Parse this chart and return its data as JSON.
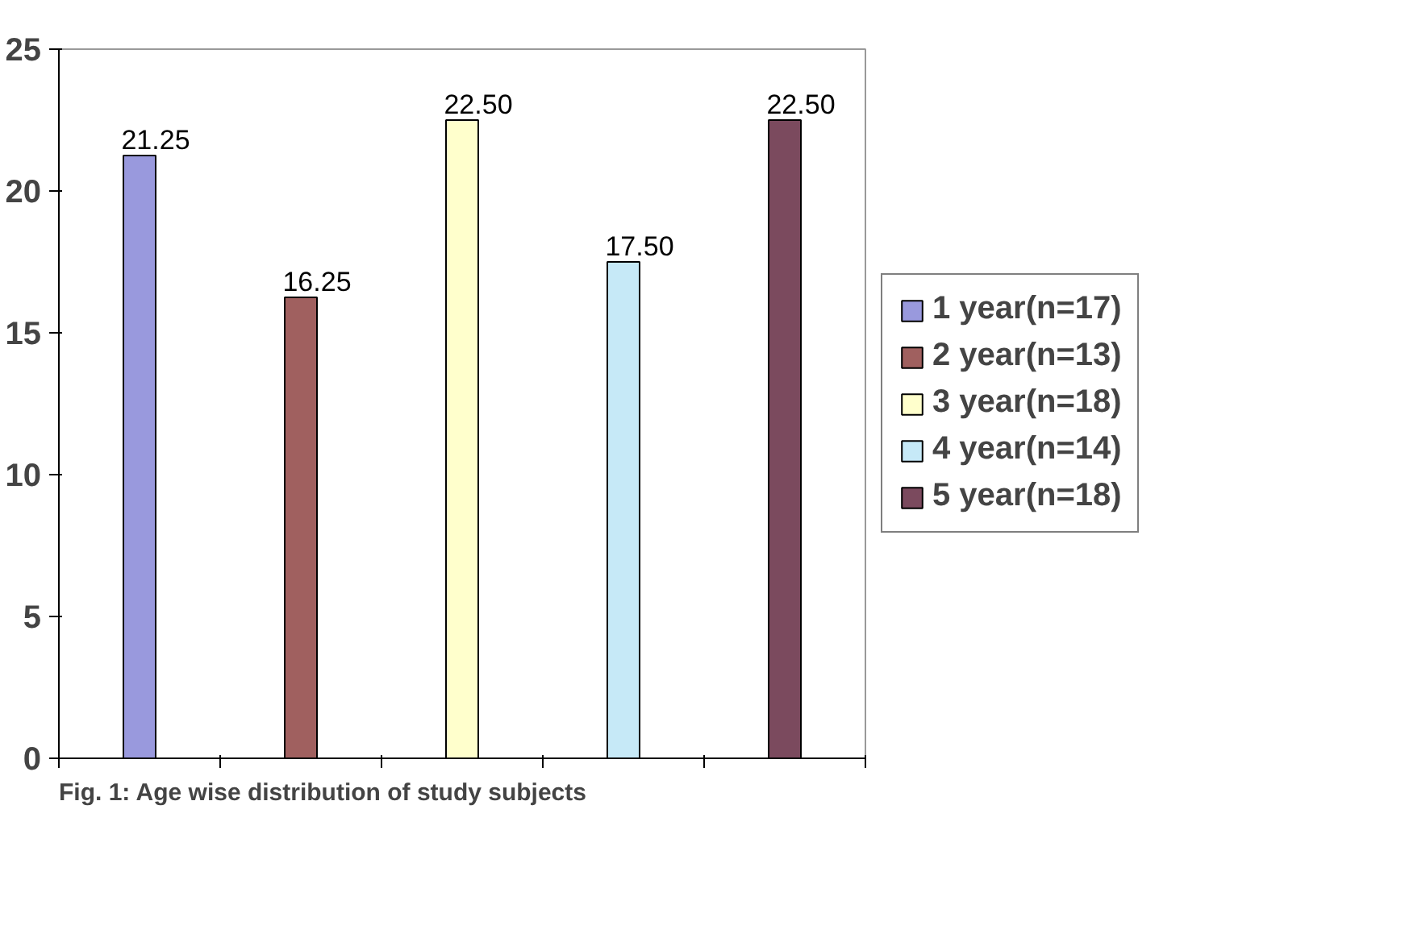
{
  "chart_data": {
    "type": "bar",
    "categories": [
      null,
      null,
      null,
      null,
      null
    ],
    "series": [
      {
        "name": "1 year(n=17)",
        "color": "#9999dd",
        "values": [
          21.25,
          null,
          null,
          null,
          null
        ],
        "value_labels": [
          "21.25",
          null,
          null,
          null,
          null
        ]
      },
      {
        "name": "2 year(n=13)",
        "color": "#a0605f",
        "values": [
          null,
          16.25,
          null,
          null,
          null
        ],
        "value_labels": [
          null,
          "16.25",
          null,
          null,
          null
        ]
      },
      {
        "name": "3 year(n=18)",
        "color": "#ffffcc",
        "values": [
          null,
          null,
          22.5,
          null,
          null
        ],
        "value_labels": [
          null,
          null,
          "22.50",
          null,
          null
        ]
      },
      {
        "name": "4 year(n=14)",
        "color": "#c6e9f7",
        "values": [
          null,
          null,
          null,
          17.5,
          null
        ],
        "value_labels": [
          null,
          null,
          null,
          "17.50",
          null
        ]
      },
      {
        "name": "5 year(n=18)",
        "color": "#7b4a5e",
        "values": [
          null,
          null,
          null,
          null,
          22.5
        ],
        "value_labels": [
          null,
          null,
          null,
          null,
          "22.50"
        ]
      }
    ],
    "ylim": [
      0,
      25
    ],
    "yticks": [
      0,
      5,
      10,
      15,
      20,
      25
    ],
    "grid": false,
    "legend": "right",
    "tick_labels": "y",
    "annotations": [
      "Fig. 1: Age wise distribution of study subjects"
    ]
  }
}
